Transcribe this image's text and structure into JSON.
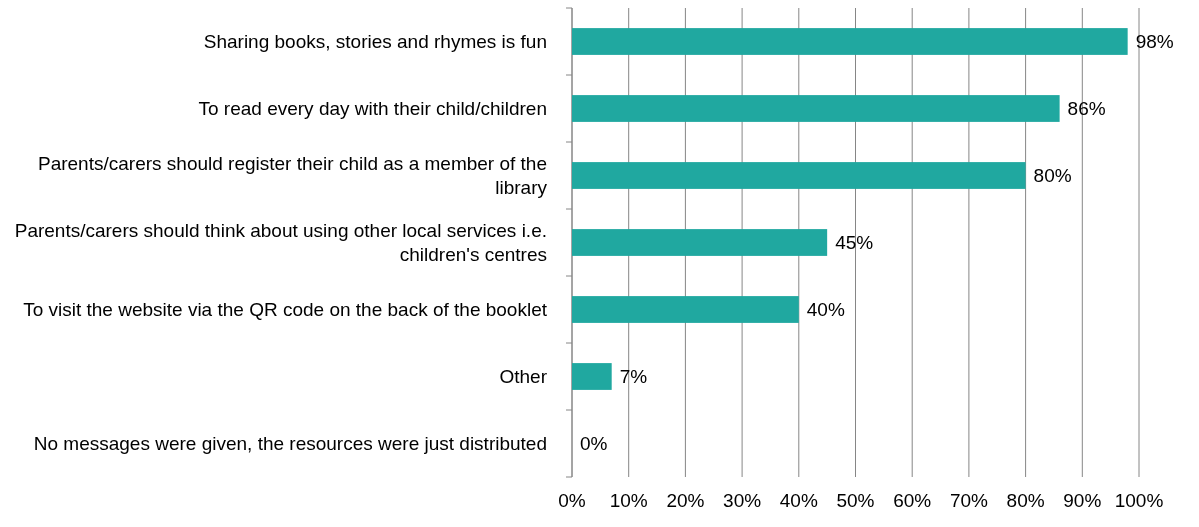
{
  "chart_data": {
    "type": "bar",
    "orientation": "horizontal",
    "categories": [
      "Sharing books, stories and rhymes is fun",
      "To read every day with their child/children",
      "Parents/carers should register their child as a member of the library",
      "Parents/carers should think about using other local services i.e. children's centres",
      "To visit the website via the QR code on the back of the booklet",
      "Other",
      "No messages were given, the resources were just distributed"
    ],
    "values": [
      98,
      86,
      80,
      45,
      40,
      7,
      0
    ],
    "value_labels": [
      "98%",
      "86%",
      "80%",
      "45%",
      "40%",
      "7%",
      "0%"
    ],
    "color": "#20a8a0",
    "xlim": [
      0,
      100
    ],
    "xticks": [
      {
        "value": 0,
        "label": "0%"
      },
      {
        "value": 10,
        "label": "10%"
      },
      {
        "value": 20,
        "label": "20%"
      },
      {
        "value": 30,
        "label": "30%"
      },
      {
        "value": 40,
        "label": "40%"
      },
      {
        "value": 50,
        "label": "50%"
      },
      {
        "value": 60,
        "label": "60%"
      },
      {
        "value": 70,
        "label": "70%"
      },
      {
        "value": 80,
        "label": "80%"
      },
      {
        "value": 90,
        "label": "90%"
      },
      {
        "value": 100,
        "label": "100%"
      }
    ],
    "grid": "x"
  }
}
